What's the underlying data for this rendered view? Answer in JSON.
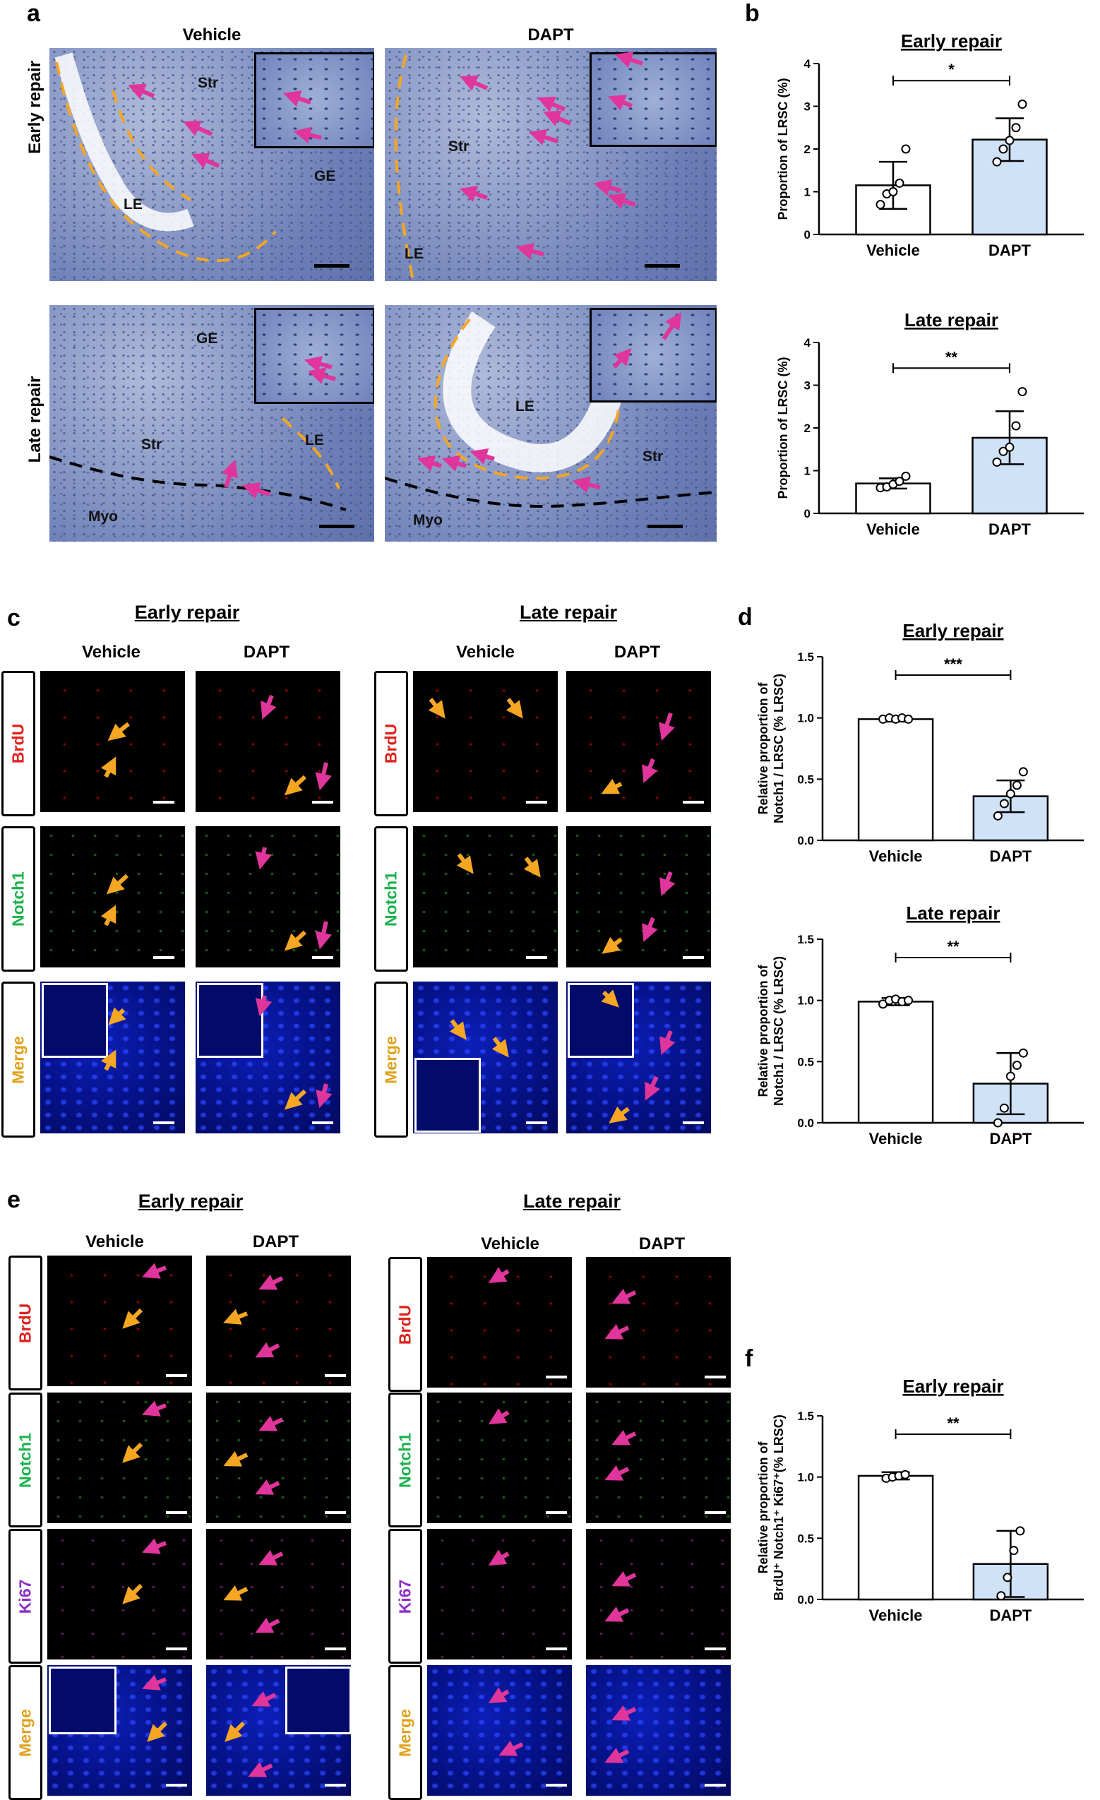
{
  "panel_labels": {
    "a": "a",
    "b": "b",
    "c": "c",
    "d": "d",
    "e": "e",
    "f": "f"
  },
  "a": {
    "col_vehicle": "Vehicle",
    "col_dapt": "DAPT",
    "row_early": "Early repair",
    "row_late": "Late repair",
    "tissue": {
      "str": "Str",
      "ge": "GE",
      "le": "LE",
      "myo": "Myo"
    }
  },
  "c": {
    "section_early": "Early repair",
    "section_late": "Late repair",
    "col_vehicle": "Vehicle",
    "col_dapt": "DAPT",
    "channels": {
      "brdu": "BrdU",
      "notch1": "Notch1",
      "merge": "Merge"
    },
    "channel_colors": {
      "brdu": "#e0201b",
      "notch1": "#19b24b",
      "merge": "#e0a21b"
    }
  },
  "e": {
    "section_early": "Early repair",
    "section_late": "Late repair",
    "col_vehicle": "Vehicle",
    "col_dapt": "DAPT",
    "channels": {
      "brdu": "BrdU",
      "notch1": "Notch1",
      "ki67": "Ki67",
      "merge": "Merge"
    },
    "channel_colors": {
      "brdu": "#e0201b",
      "notch1": "#19b24b",
      "ki67": "#8b2fc9",
      "merge": "#e0a21b"
    }
  },
  "colors": {
    "vehicle_bar": "#ffffff",
    "dapt_bar": "#cfe2f7",
    "arrow_magenta": "#e0359b",
    "arrow_orange": "#f5a623",
    "dashed_orange": "#f5a623"
  },
  "chart_data": [
    {
      "id": "b-early",
      "type": "bar",
      "title": "Early repair",
      "ylabel": "Proportion of LRSC (%)",
      "categories": [
        "Vehicle",
        "DAPT"
      ],
      "values": [
        1.15,
        2.22
      ],
      "errors": [
        0.55,
        0.5
      ],
      "points": [
        [
          0.7,
          0.95,
          1.0,
          1.2,
          2.0
        ],
        [
          1.7,
          2.0,
          2.2,
          2.5,
          3.05
        ]
      ],
      "ylim": [
        0,
        4
      ],
      "yticks": [
        "0",
        "1",
        "2",
        "3",
        "4"
      ],
      "significance": "*"
    },
    {
      "id": "b-late",
      "type": "bar",
      "title": "Late repair",
      "ylabel": "Proportion of LRSC (%)",
      "categories": [
        "Vehicle",
        "DAPT"
      ],
      "values": [
        0.7,
        1.77
      ],
      "errors": [
        0.12,
        0.62
      ],
      "points": [
        [
          0.6,
          0.62,
          0.68,
          0.75,
          0.87
        ],
        [
          1.2,
          1.45,
          1.55,
          2.05,
          2.85
        ]
      ],
      "ylim": [
        0,
        4
      ],
      "yticks": [
        "0",
        "1",
        "2",
        "3",
        "4"
      ],
      "significance": "**"
    },
    {
      "id": "d-early",
      "type": "bar",
      "title": "Early repair",
      "ylabel": "Relative proportion of Notch1 / LRSC (% LRSC)",
      "ylabel_lines": [
        "Relative proportion of",
        "Notch1 / LRSC (% LRSC)"
      ],
      "categories": [
        "Vehicle",
        "DAPT"
      ],
      "values": [
        0.99,
        0.36
      ],
      "errors": [
        0.02,
        0.13
      ],
      "points": [
        [
          0.99,
          1.0,
          0.99,
          1.0,
          0.99
        ],
        [
          0.2,
          0.3,
          0.38,
          0.45,
          0.56
        ]
      ],
      "ylim": [
        0,
        1.5
      ],
      "yticks": [
        "0.0",
        "0.5",
        "1.0",
        "1.5"
      ],
      "significance": "***"
    },
    {
      "id": "d-late",
      "type": "bar",
      "title": "Late repair",
      "ylabel": "Relative proportion of Notch1 / LRSC (% LRSC)",
      "ylabel_lines": [
        "Relative proportion of",
        "Notch1 / LRSC (% LRSC)"
      ],
      "categories": [
        "Vehicle",
        "DAPT"
      ],
      "values": [
        0.99,
        0.32
      ],
      "errors": [
        0.03,
        0.25
      ],
      "points": [
        [
          0.97,
          1.0,
          1.01,
          0.99,
          1.0
        ],
        [
          0.0,
          0.12,
          0.38,
          0.47,
          0.57
        ]
      ],
      "ylim": [
        0,
        1.5
      ],
      "yticks": [
        "0.0",
        "0.5",
        "1.0",
        "1.5"
      ],
      "significance": "**"
    },
    {
      "id": "f-early",
      "type": "bar",
      "title": "Early repair",
      "ylabel": "Relative proportion of BrdU+ Notch1+ Ki67+(% LRSC)",
      "ylabel_lines": [
        "Relative proportion of",
        "BrdU⁺ Notch1⁺ Ki67⁺(% LRSC)"
      ],
      "categories": [
        "Vehicle",
        "DAPT"
      ],
      "values": [
        1.01,
        0.29
      ],
      "errors": [
        0.03,
        0.27
      ],
      "points": [
        [
          0.99,
          1.0,
          1.01,
          1.02
        ],
        [
          0.03,
          0.18,
          0.4,
          0.56
        ]
      ],
      "ylim": [
        0,
        1.5
      ],
      "yticks": [
        "0.0",
        "0.5",
        "1.0",
        "1.5"
      ],
      "significance": "**"
    }
  ]
}
